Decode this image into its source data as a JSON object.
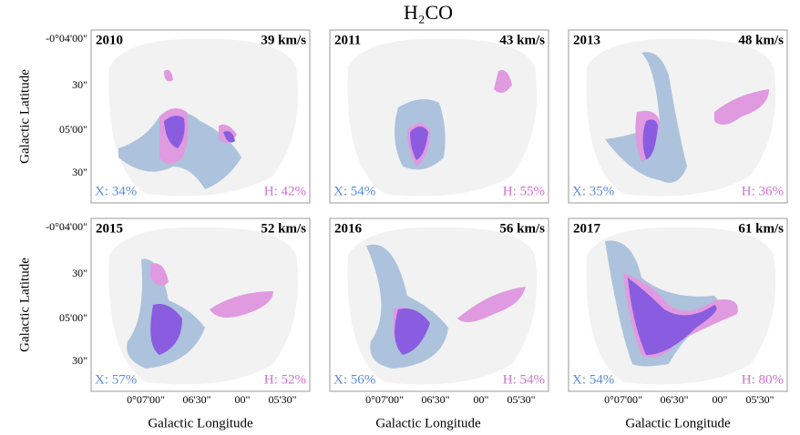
{
  "title": "H₂CO",
  "y_axis_label": "Galactic Latitude",
  "x_axis_label": "Galactic Longitude",
  "yticks": [
    "-0°04'00\"",
    "30\"",
    "05'00\"",
    "30\""
  ],
  "xticks": [
    "0°07'00\"",
    "06'30\"",
    "00\"",
    "05'30\""
  ],
  "panels": [
    {
      "year": "2010",
      "velocity": "39 km/s",
      "x_fraction": "X: 34%",
      "h_fraction": "H: 42%"
    },
    {
      "year": "2011",
      "velocity": "43 km/s",
      "x_fraction": "X: 54%",
      "h_fraction": "H: 55%"
    },
    {
      "year": "2013",
      "velocity": "48 km/s",
      "x_fraction": "X: 35%",
      "h_fraction": "H: 36%"
    },
    {
      "year": "2015",
      "velocity": "52 km/s",
      "x_fraction": "X: 57%",
      "h_fraction": "H: 52%"
    },
    {
      "year": "2016",
      "velocity": "56 km/s",
      "x_fraction": "X: 56%",
      "h_fraction": "H: 54%"
    },
    {
      "year": "2017",
      "velocity": "61 km/s",
      "x_fraction": "X: 54%",
      "h_fraction": "H: 80%"
    }
  ]
}
